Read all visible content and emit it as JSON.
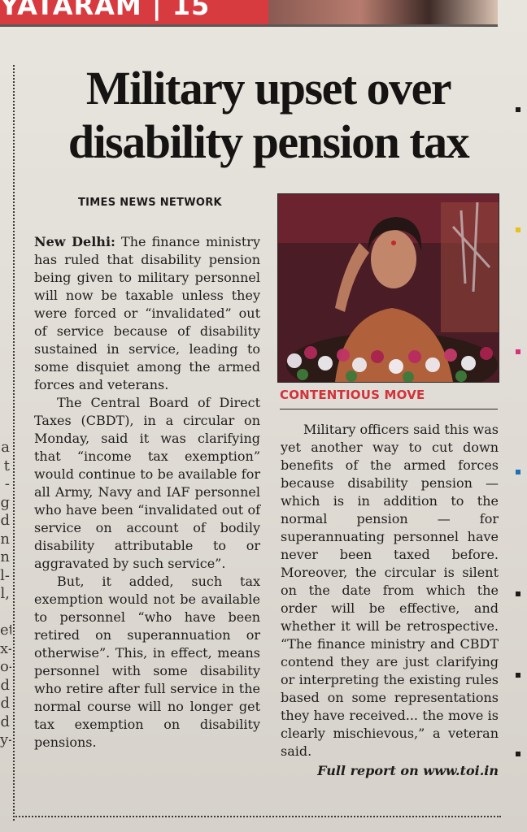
{
  "masthead": {
    "fragment": "YATARAM | 15"
  },
  "article": {
    "headline_lines": [
      "Military upset over",
      "disability pension tax"
    ],
    "byline": "Times News Network",
    "dateline": "New Delhi:",
    "paragraphs_col1": [
      "The finance ministry has ruled that disability pension being given to military personnel will now be taxable unless they were forced or “invalidated” out of service because of disability sustained in service, leading to some disquiet among the armed forces and veterans.",
      "The Central Board of Direct Taxes (CBDT), in a circular on Monday, said it was clarifying that “income tax exemption” would continue to be available for all Army, Navy and IAF personnel who have been “invalidated out of service on account of bodily disability attributable to or aggravated by such service”.",
      "But, it added, such tax exemption would not be available to personnel “who have been retired on superannuation or otherwise”. This, in effect, means personnel with some disability who retire after full service in the normal course will no longer get tax exemption on disability pensions."
    ],
    "paragraphs_col2": [
      "Military officers said this was yet another way to cut down benefits of the armed forces because disability pension — which is in addition to the normal pension — for superannuating personnel have never been taxed before. Moreover, the circular is silent on the date from which the order will be effective, and whether it will be retrospective. “The finance ministry and CBDT contend they are just clarifying or interpreting the existing rules based on some representations they have received... the move is clearly mischievous,” a veteran said."
    ],
    "full_report": "Full report on www.toi.in",
    "photo_caption": "CONTENTIOUS MOVE"
  },
  "adjacent_column_fragments": [
    "a",
    "t",
    "-",
    "g",
    "d",
    "n",
    "n",
    "l-",
    "l,",
    "",
    "et",
    "x-",
    "o-",
    "d",
    "d",
    "d",
    "y-"
  ],
  "colors": {
    "masthead_red": "#d73a3f",
    "caption_red": "#d2323a",
    "registration_marks": [
      "#e8c21a",
      "#d8307a",
      "#1f6fb6",
      "#1d1b1a"
    ]
  }
}
